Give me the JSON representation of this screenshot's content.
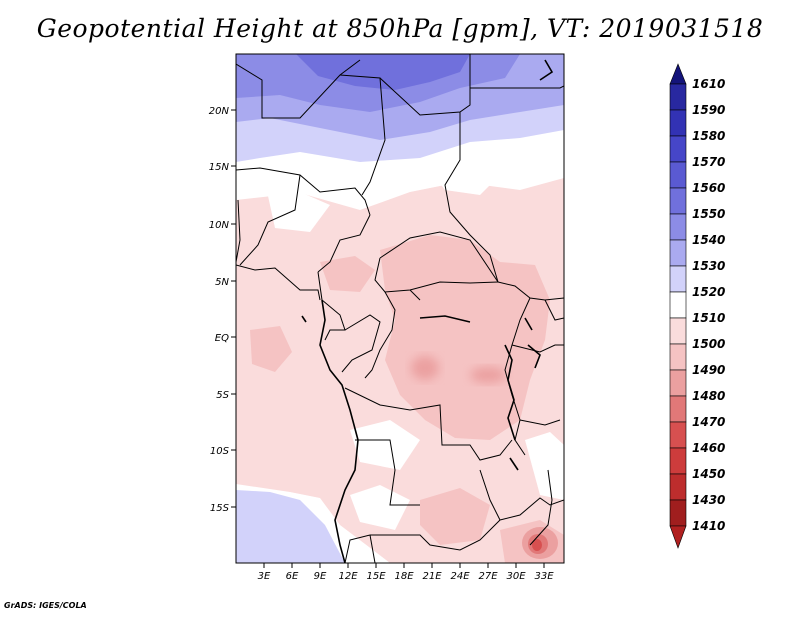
{
  "title": "Geopotential Height at 850hPa [gpm], VT: 2019031518",
  "credit": "GrADS: IGES/COLA",
  "map": {
    "variable": "Geopotential Height at 850hPa",
    "units": "gpm",
    "valid_time": "2019031518",
    "lat_ticks": [
      "20N",
      "15N",
      "10N",
      "5N",
      "EQ",
      "5S",
      "10S",
      "15S"
    ],
    "lon_ticks": [
      "3E",
      "6E",
      "9E",
      "12E",
      "15E",
      "18E",
      "21E",
      "24E",
      "27E",
      "30E",
      "33E"
    ]
  },
  "colorbar": {
    "levels": [
      {
        "label": "1610",
        "color": "#1e1e8c"
      },
      {
        "label": "1590",
        "color": "#2828a0"
      },
      {
        "label": "1580",
        "color": "#3232b4"
      },
      {
        "label": "1570",
        "color": "#4646c8"
      },
      {
        "label": "1560",
        "color": "#5a5ad2"
      },
      {
        "label": "1550",
        "color": "#7070dc"
      },
      {
        "label": "1540",
        "color": "#8c8ce6"
      },
      {
        "label": "1530",
        "color": "#aaaaf0"
      },
      {
        "label": "1520",
        "color": "#d2d2fa"
      },
      {
        "label": "1510",
        "color": "#ffffff"
      },
      {
        "label": "1500",
        "color": "#fadcdc"
      },
      {
        "label": "1490",
        "color": "#f5c3c3"
      },
      {
        "label": "1480",
        "color": "#eba0a0"
      },
      {
        "label": "1470",
        "color": "#e17878"
      },
      {
        "label": "1460",
        "color": "#d75050"
      },
      {
        "label": "1450",
        "color": "#cd3c3c"
      },
      {
        "label": "1430",
        "color": "#bd2d2d"
      },
      {
        "label": "1410",
        "color": "#a01e1e"
      }
    ],
    "top_arrow_color": "#14147a",
    "bottom_arrow_color": "#b02020"
  }
}
